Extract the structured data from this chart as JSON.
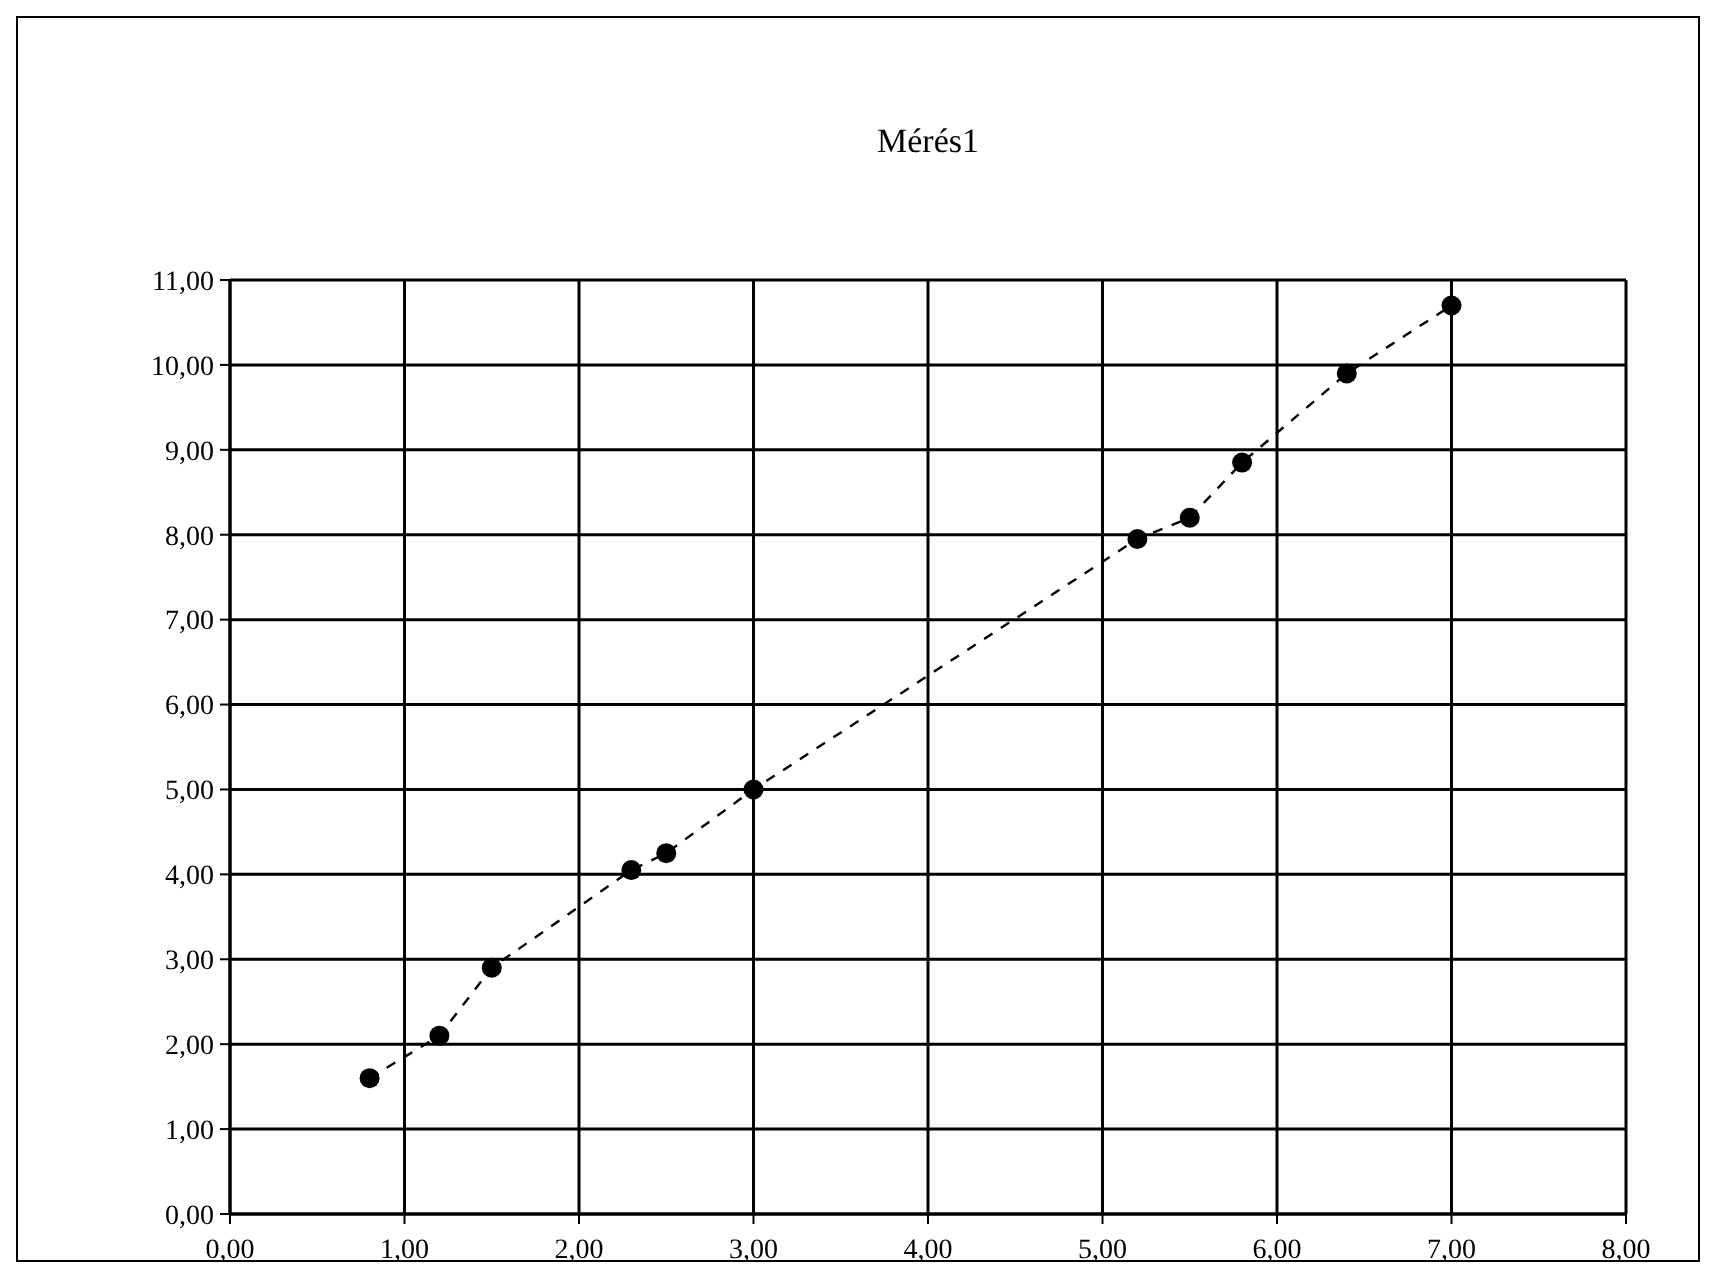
{
  "chart_data": {
    "type": "line",
    "title": "Mérés1",
    "line_style": "dashed",
    "marker": "circle",
    "grid": true,
    "x": [
      0.8,
      1.2,
      1.5,
      2.3,
      2.5,
      3.0,
      5.2,
      5.5,
      5.8,
      6.4,
      7.0
    ],
    "series": [
      {
        "color": "#000000",
        "values": [
          1.6,
          2.1,
          2.9,
          4.05,
          4.25,
          5.0,
          7.95,
          8.2,
          8.85,
          9.9,
          10.7
        ]
      }
    ],
    "xlim": [
      0,
      8
    ],
    "xticks": [
      {
        "value": 0,
        "label": "0,00"
      },
      {
        "value": 1,
        "label": "1,00"
      },
      {
        "value": 2,
        "label": "2,00"
      },
      {
        "value": 3,
        "label": "3,00"
      },
      {
        "value": 4,
        "label": "4,00"
      },
      {
        "value": 5,
        "label": "5,00"
      },
      {
        "value": 6,
        "label": "6,00"
      },
      {
        "value": 7,
        "label": "7,00"
      },
      {
        "value": 8,
        "label": "8,00"
      }
    ],
    "ylim": [
      0,
      11
    ],
    "yticks": [
      {
        "value": 0,
        "label": "0,00"
      },
      {
        "value": 1,
        "label": "1,00"
      },
      {
        "value": 2,
        "label": "2,00"
      },
      {
        "value": 3,
        "label": "3,00"
      },
      {
        "value": 4,
        "label": "4,00"
      },
      {
        "value": 5,
        "label": "5,00"
      },
      {
        "value": 6,
        "label": "6,00"
      },
      {
        "value": 7,
        "label": "7,00"
      },
      {
        "value": 8,
        "label": "8,00"
      },
      {
        "value": 9,
        "label": "9,00"
      },
      {
        "value": 10,
        "label": "10,00"
      },
      {
        "value": 11,
        "label": "11,00"
      }
    ]
  }
}
